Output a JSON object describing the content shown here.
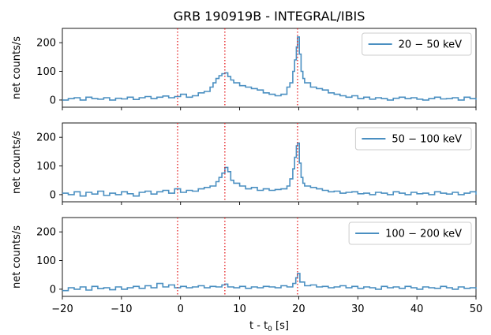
{
  "chart_data": {
    "type": "line",
    "title": "GRB 190919B - INTEGRAL/IBIS",
    "xlabel": "t - t",
    "xlabel_sub": "0",
    "xlabel_unit": " [s]",
    "xlim": [
      -20,
      50
    ],
    "xticks": [
      -20,
      -10,
      0,
      10,
      20,
      30,
      40,
      50
    ],
    "xtick_labels": [
      "−20",
      "−10",
      "0",
      "10",
      "20",
      "30",
      "40",
      "50"
    ],
    "ylabel": "net counts/s",
    "ylim": [
      -25,
      250
    ],
    "yticks": [
      0,
      100,
      200
    ],
    "line_color": "#4a8fc1",
    "vline_color": "#e41a1c",
    "vlines": [
      -0.5,
      7.5,
      19.8
    ],
    "panels": [
      {
        "legend": "20 − 50 keV",
        "x": [
          -20,
          -19,
          -18,
          -17,
          -16,
          -15,
          -14,
          -13,
          -12,
          -11,
          -10,
          -9,
          -8,
          -7,
          -6,
          -5,
          -4,
          -3,
          -2,
          -1,
          0,
          1,
          2,
          3,
          4,
          5,
          5.5,
          6,
          6.5,
          7,
          7.5,
          8,
          8.5,
          9,
          10,
          11,
          12,
          13,
          14,
          15,
          16,
          17,
          18,
          18.5,
          19,
          19.3,
          19.6,
          19.8,
          20.1,
          20.4,
          20.7,
          21,
          22,
          23,
          24,
          25,
          26,
          27,
          28,
          29,
          30,
          31,
          32,
          33,
          34,
          35,
          36,
          37,
          38,
          39,
          40,
          41,
          42,
          43,
          44,
          45,
          46,
          47,
          48,
          49,
          50
        ],
        "values": [
          0,
          5,
          8,
          0,
          10,
          5,
          3,
          8,
          0,
          6,
          4,
          10,
          2,
          8,
          12,
          5,
          10,
          14,
          8,
          12,
          20,
          10,
          15,
          25,
          30,
          45,
          60,
          75,
          85,
          92,
          95,
          82,
          70,
          60,
          50,
          45,
          40,
          35,
          25,
          20,
          15,
          20,
          45,
          60,
          100,
          140,
          185,
          220,
          160,
          100,
          75,
          60,
          45,
          40,
          35,
          25,
          20,
          15,
          10,
          15,
          5,
          10,
          3,
          8,
          5,
          0,
          6,
          10,
          5,
          8,
          3,
          0,
          5,
          10,
          4,
          5,
          8,
          0,
          10,
          5,
          0
        ]
      },
      {
        "legend": "50 − 100 keV",
        "x": [
          -20,
          -19,
          -18,
          -17,
          -16,
          -15,
          -14,
          -13,
          -12,
          -11,
          -10,
          -9,
          -8,
          -7,
          -6,
          -5,
          -4,
          -3,
          -2,
          -1,
          0,
          1,
          2,
          3,
          4,
          5,
          6,
          6.5,
          7,
          7.5,
          8,
          8.5,
          9,
          10,
          11,
          12,
          13,
          14,
          15,
          16,
          17,
          18,
          18.5,
          19,
          19.3,
          19.6,
          19.8,
          20.1,
          20.4,
          20.7,
          21,
          22,
          23,
          24,
          25,
          26,
          27,
          28,
          29,
          30,
          31,
          32,
          33,
          34,
          35,
          36,
          37,
          38,
          39,
          40,
          41,
          42,
          43,
          44,
          45,
          46,
          47,
          48,
          49,
          50
        ],
        "values": [
          5,
          0,
          10,
          -5,
          8,
          2,
          12,
          -3,
          5,
          0,
          10,
          3,
          -5,
          8,
          12,
          2,
          10,
          15,
          5,
          20,
          8,
          15,
          12,
          20,
          25,
          30,
          45,
          60,
          75,
          95,
          80,
          50,
          40,
          30,
          20,
          25,
          15,
          20,
          15,
          18,
          20,
          30,
          55,
          90,
          130,
          170,
          180,
          110,
          60,
          40,
          30,
          25,
          20,
          15,
          10,
          12,
          5,
          8,
          10,
          3,
          5,
          0,
          8,
          5,
          0,
          10,
          5,
          0,
          8,
          3,
          5,
          0,
          10,
          5,
          2,
          8,
          0,
          5,
          10,
          0
        ]
      },
      {
        "legend": "100 − 200 keV",
        "x": [
          -20,
          -19,
          -18,
          -17,
          -16,
          -15,
          -14,
          -13,
          -12,
          -11,
          -10,
          -9,
          -8,
          -7,
          -6,
          -5,
          -4,
          -3,
          -2,
          -1,
          0,
          1,
          2,
          3,
          4,
          5,
          6,
          7,
          7.5,
          8,
          9,
          10,
          11,
          12,
          13,
          14,
          15,
          16,
          17,
          18,
          19,
          19.5,
          19.8,
          20.2,
          21,
          22,
          23,
          24,
          25,
          26,
          27,
          28,
          29,
          30,
          31,
          32,
          33,
          34,
          35,
          36,
          37,
          38,
          39,
          40,
          41,
          42,
          43,
          44,
          45,
          46,
          47,
          48,
          49,
          50
        ],
        "values": [
          -5,
          5,
          0,
          8,
          -3,
          10,
          2,
          5,
          -2,
          8,
          0,
          5,
          10,
          3,
          12,
          5,
          20,
          8,
          15,
          5,
          10,
          5,
          8,
          12,
          5,
          10,
          8,
          15,
          18,
          8,
          5,
          10,
          3,
          8,
          5,
          10,
          8,
          5,
          12,
          8,
          20,
          40,
          55,
          25,
          12,
          15,
          8,
          10,
          5,
          8,
          12,
          5,
          10,
          3,
          8,
          5,
          0,
          10,
          5,
          8,
          3,
          10,
          5,
          0,
          8,
          5,
          3,
          10,
          5,
          0,
          8,
          3,
          5,
          0
        ]
      }
    ]
  }
}
